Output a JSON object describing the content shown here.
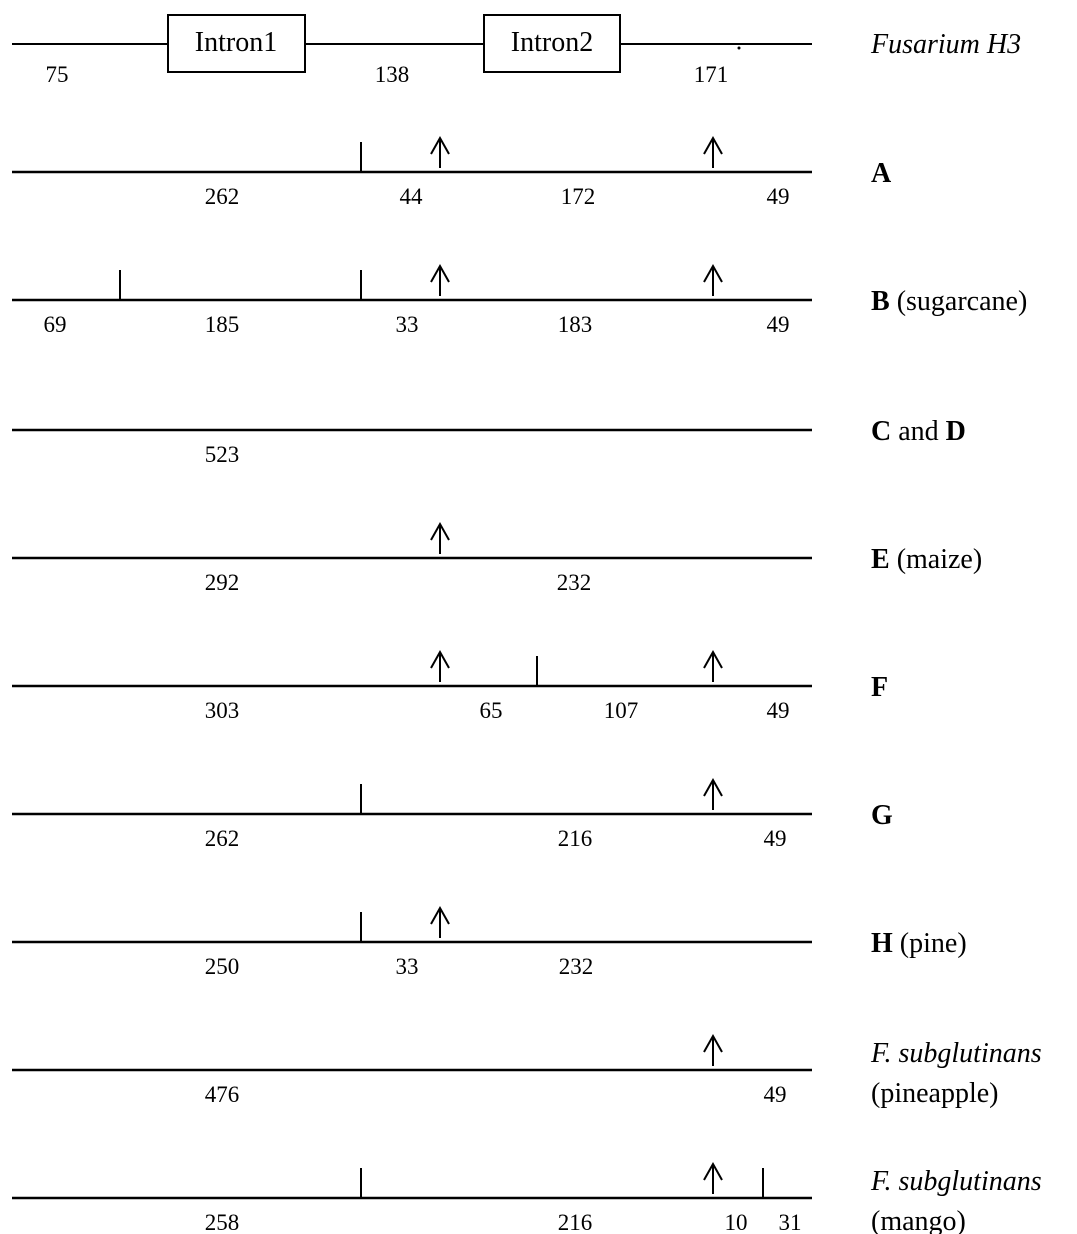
{
  "gene": {
    "name": "Fusarium H3",
    "introns": [
      "Intron1",
      "Intron2"
    ],
    "exon_lengths": [
      "75",
      "138",
      "171"
    ]
  },
  "rows": [
    {
      "label_bold": "A",
      "label_rest": "",
      "label_italic": "",
      "label_line2": "",
      "fragments": [
        "262",
        "44",
        "172",
        "49"
      ],
      "cut_kinds": [
        "line",
        "arrow",
        "arrow"
      ]
    },
    {
      "label_bold": "B",
      "label_rest": " (sugarcane)",
      "label_italic": "",
      "label_line2": "",
      "fragments": [
        "69",
        "185",
        "33",
        "183",
        "49"
      ],
      "cut_kinds": [
        "line",
        "line",
        "arrow",
        "arrow"
      ]
    },
    {
      "label_bold": "C",
      "label_rest": " and ",
      "label_bold2": "D",
      "label_italic": "",
      "label_line2": "",
      "fragments": [
        "523"
      ],
      "cut_kinds": []
    },
    {
      "label_bold": "E",
      "label_rest": " (maize)",
      "label_italic": "",
      "label_line2": "",
      "fragments": [
        "292",
        "232"
      ],
      "cut_kinds": [
        "arrow"
      ]
    },
    {
      "label_bold": "F",
      "label_rest": "",
      "label_italic": "",
      "label_line2": "",
      "fragments": [
        "303",
        "65",
        "107",
        "49"
      ],
      "cut_kinds": [
        "arrow",
        "line",
        "arrow"
      ]
    },
    {
      "label_bold": "G",
      "label_rest": "",
      "label_italic": "",
      "label_line2": "",
      "fragments": [
        "262",
        "216",
        "49"
      ],
      "cut_kinds": [
        "line",
        "arrow"
      ]
    },
    {
      "label_bold": "H",
      "label_rest": " (pine)",
      "label_italic": "",
      "label_line2": "",
      "fragments": [
        "250",
        "33",
        "232"
      ],
      "cut_kinds": [
        "line",
        "arrow"
      ]
    },
    {
      "label_bold": "",
      "label_rest": "",
      "label_italic": "F. subglutinans",
      "label_line2": "(pineapple)",
      "fragments": [
        "476",
        "49"
      ],
      "cut_kinds": [
        "arrow"
      ]
    },
    {
      "label_bold": "",
      "label_rest": "",
      "label_italic": "F. subglutinans",
      "label_line2": "(mango)",
      "fragments": [
        "258",
        "216",
        "10",
        "31"
      ],
      "cut_kinds": [
        "line",
        "arrow",
        "line"
      ]
    }
  ]
}
